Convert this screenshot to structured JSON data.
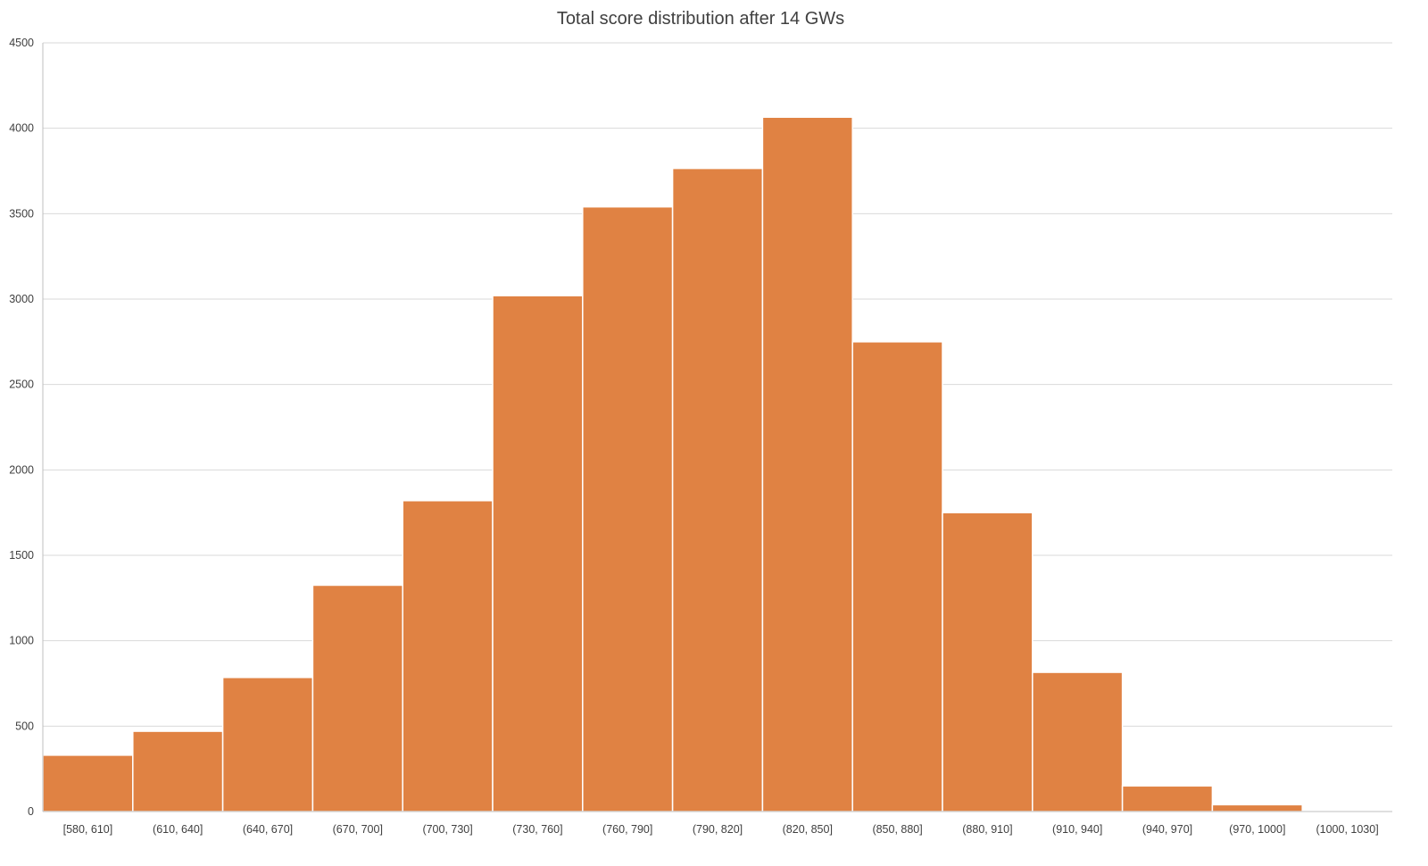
{
  "chart_data": {
    "type": "bar",
    "title": "Total score distribution after 14 GWs",
    "xlabel": "",
    "ylabel": "",
    "categories": [
      "[580, 610]",
      "(610, 640]",
      "(640, 670]",
      "(670, 700]",
      "(700, 730]",
      "(730, 760]",
      "(760, 790]",
      "(790, 820]",
      "(820, 850]",
      "(850, 880]",
      "(880, 910]",
      "(910, 940]",
      "(940, 970]",
      "(970, 1000]",
      "(1000, 1030]"
    ],
    "values": [
      330,
      470,
      785,
      1325,
      1820,
      3020,
      3540,
      3765,
      4065,
      2750,
      1750,
      815,
      150,
      40,
      5
    ],
    "ylim": [
      0,
      4500
    ],
    "yticks": [
      0,
      500,
      1000,
      1500,
      2000,
      2500,
      3000,
      3500,
      4000,
      4500
    ],
    "grid": true,
    "legend": "none",
    "bar_color": "#E08243",
    "gridline_color": "#D9D9D9",
    "text_color": "#404040"
  }
}
